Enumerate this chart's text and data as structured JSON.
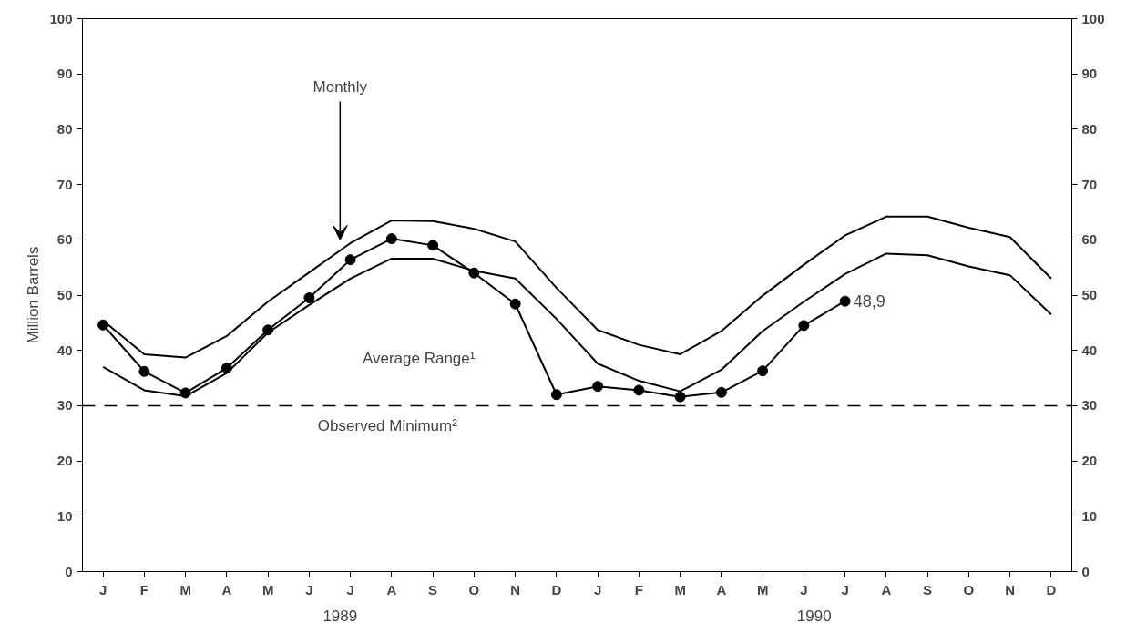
{
  "chart_data": {
    "type": "line",
    "ylabel": "Million Barrels",
    "categories": [
      "J",
      "F",
      "M",
      "A",
      "M",
      "J",
      "J",
      "A",
      "S",
      "O",
      "N",
      "D",
      "J",
      "F",
      "M",
      "A",
      "M",
      "J",
      "J",
      "A",
      "S",
      "O",
      "N",
      "D"
    ],
    "ylim": [
      0,
      100
    ],
    "yticks": [
      0,
      10,
      20,
      30,
      40,
      50,
      60,
      70,
      80,
      90,
      100
    ],
    "y2lim": [
      0,
      100
    ],
    "y2ticks": [
      0,
      10,
      20,
      30,
      40,
      50,
      60,
      70,
      80,
      90,
      100
    ],
    "grid": false,
    "series": [
      {
        "color": "#000000",
        "values": [
          45.4,
          39.3,
          38.7,
          42.6,
          48.8,
          54.1,
          59.4,
          63.5,
          63.4,
          62.0,
          59.7,
          51.3,
          43.7,
          41.0,
          39.3,
          43.5,
          49.9,
          55.5,
          60.8,
          64.2,
          64.2,
          62.2,
          60.5,
          53.0
        ]
      },
      {
        "color": "#000000",
        "values": [
          37.0,
          32.8,
          31.7,
          35.9,
          43.2,
          48.2,
          53.0,
          56.6,
          56.6,
          54.4,
          53.0,
          45.7,
          37.6,
          34.5,
          32.6,
          36.5,
          43.5,
          48.8,
          53.8,
          57.5,
          57.2,
          55.2,
          53.6,
          46.5
        ]
      },
      {
        "color": "#000000",
        "marker": "circle",
        "values": [
          44.6,
          36.2,
          32.3,
          36.8,
          43.7,
          49.5,
          56.4,
          60.2,
          59.0,
          54.0,
          48.4,
          32.0,
          33.5,
          32.8,
          31.6,
          32.4,
          36.3,
          44.5,
          48.9,
          null,
          null,
          null,
          null,
          null
        ],
        "value_labels": [
          null,
          null,
          null,
          null,
          null,
          null,
          null,
          null,
          null,
          null,
          null,
          null,
          null,
          null,
          null,
          null,
          null,
          null,
          "48,9",
          null,
          null,
          null,
          null,
          null
        ]
      }
    ],
    "ref_lines": [
      {
        "axis": "y",
        "value": 30,
        "label": "Observed Minimum²",
        "line_style": "dashed",
        "color": "#000000"
      }
    ],
    "annotations": [
      "Monthly",
      "Average Range¹",
      "1989",
      "1990"
    ]
  }
}
